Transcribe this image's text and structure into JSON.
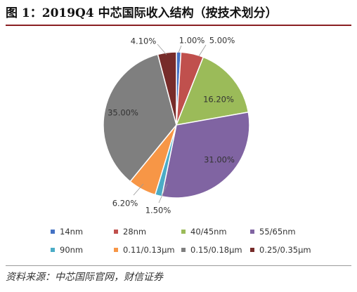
{
  "title": "图 1：2019Q4 中芯国际收入结构（按技术划分）",
  "source": "资料来源：中芯国际官网，财信证券",
  "chart_data": {
    "type": "pie",
    "title": "",
    "start_angle_deg": 0,
    "direction": "clockwise",
    "slices": [
      {
        "label": "14nm",
        "value": 1.0,
        "value_label": "1.00%",
        "color": "#4472C4"
      },
      {
        "label": "28nm",
        "value": 5.0,
        "value_label": "5.00%",
        "color": "#C0504D"
      },
      {
        "label": "40/45nm",
        "value": 16.2,
        "value_label": "16.20%",
        "color": "#9BBB59"
      },
      {
        "label": "55/65nm",
        "value": 31.0,
        "value_label": "31.00%",
        "color": "#8064A2"
      },
      {
        "label": "90nm",
        "value": 1.5,
        "value_label": "1.50%",
        "color": "#4BACC6"
      },
      {
        "label": "0.11/0.13μm",
        "value": 6.2,
        "value_label": "6.20%",
        "color": "#F79646"
      },
      {
        "label": "0.15/0.18μm",
        "value": 35.0,
        "value_label": "35.00%",
        "color": "#7F7F7F"
      },
      {
        "label": "0.25/0.35μm",
        "value": 4.1,
        "value_label": "4.10%",
        "color": "#772C2A"
      }
    ],
    "legend_placement": "bottom"
  }
}
